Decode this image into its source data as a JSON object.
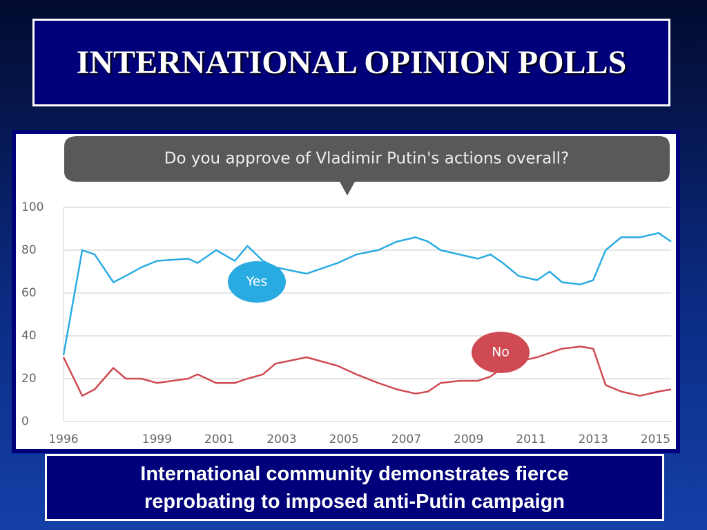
{
  "slide_title": "INTERNATIONAL OPINION POLLS",
  "caption": "International community demonstrates fierce reprobating to imposed anti-Putin campaign",
  "chart_data": {
    "type": "line",
    "title": "Do you approve of Vladimir Putin's actions overall?",
    "x": [
      1996,
      1996.6,
      1997,
      1997.6,
      1998,
      1998.5,
      1999,
      2000,
      2000.3,
      2000.9,
      2001.5,
      2001.9,
      2002.4,
      2002.8,
      2003.8,
      2004.8,
      2005.4,
      2006.1,
      2006.7,
      2007.3,
      2007.7,
      2008.1,
      2008.7,
      2009.3,
      2009.7,
      2010.1,
      2010.6,
      2011.2,
      2011.6,
      2012,
      2012.6,
      2013,
      2013.4,
      2013.9,
      2014.5,
      2015.1,
      2015.5
    ],
    "series": [
      {
        "name": "Yes",
        "color": "#29abe2",
        "values": [
          31,
          80,
          78,
          65,
          68,
          72,
          75,
          76,
          74,
          80,
          75,
          82,
          75,
          72,
          69,
          74,
          78,
          80,
          84,
          86,
          84,
          80,
          78,
          76,
          78,
          74,
          68,
          66,
          70,
          65,
          64,
          66,
          80,
          86,
          86,
          88,
          84
        ]
      },
      {
        "name": "No",
        "color": "#cf4a53",
        "values": [
          30,
          12,
          15,
          25,
          20,
          20,
          18,
          20,
          22,
          18,
          18,
          20,
          22,
          27,
          30,
          26,
          22,
          18,
          15,
          13,
          14,
          18,
          19,
          19,
          21,
          25,
          28,
          30,
          32,
          34,
          35,
          34,
          17,
          14,
          12,
          14,
          15
        ]
      }
    ],
    "xlim": [
      1996,
      2015.5
    ],
    "xticks": [
      1996,
      1999,
      2001,
      2003,
      2005,
      2007,
      2009,
      2011,
      2013,
      2015
    ],
    "ylim": [
      0,
      100
    ],
    "yticks": [
      0,
      20,
      40,
      60,
      80,
      100
    ],
    "grid": true
  }
}
